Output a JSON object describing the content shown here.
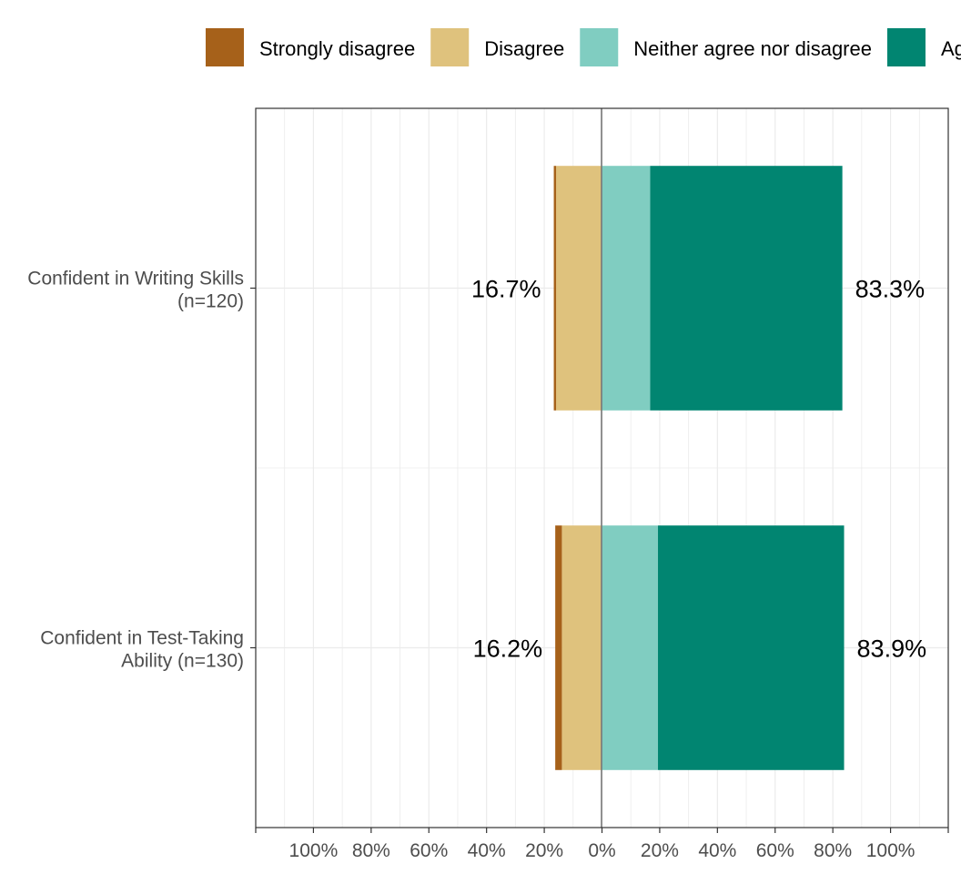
{
  "chart_data": {
    "type": "bar",
    "orientation": "horizontal",
    "stacking": "diverging",
    "legend_position": "top",
    "grid": true,
    "xlim": [
      -120,
      120
    ],
    "x_ticks": [
      -100,
      -80,
      -60,
      -40,
      -20,
      0,
      20,
      40,
      60,
      80,
      100
    ],
    "x_tick_labels": [
      "100%",
      "80%",
      "60%",
      "40%",
      "20%",
      "0%",
      "20%",
      "40%",
      "60%",
      "80%",
      "100%"
    ],
    "categories": [
      {
        "line1": "Confident in Writing Skills",
        "line2": "(n=120)"
      },
      {
        "line1": "Confident in Test-Taking",
        "line2": "Ability (n=130)"
      }
    ],
    "series": [
      {
        "name": "Strongly disagree",
        "color": "#A6611A",
        "side": "negative",
        "values": [
          0.8,
          2.3
        ]
      },
      {
        "name": "Disagree",
        "color": "#DFC27D",
        "side": "negative",
        "values": [
          15.9,
          13.9
        ]
      },
      {
        "name": "Neither agree nor disagree",
        "color": "#80CDC1",
        "side": "positive",
        "values": [
          16.7,
          19.4
        ]
      },
      {
        "name": "Agree",
        "color": "#018571",
        "side": "positive",
        "values": [
          66.6,
          64.5
        ]
      }
    ],
    "negative_totals": [
      "16.7%",
      "16.2%"
    ],
    "positive_totals": [
      "83.3%",
      "83.9%"
    ]
  }
}
